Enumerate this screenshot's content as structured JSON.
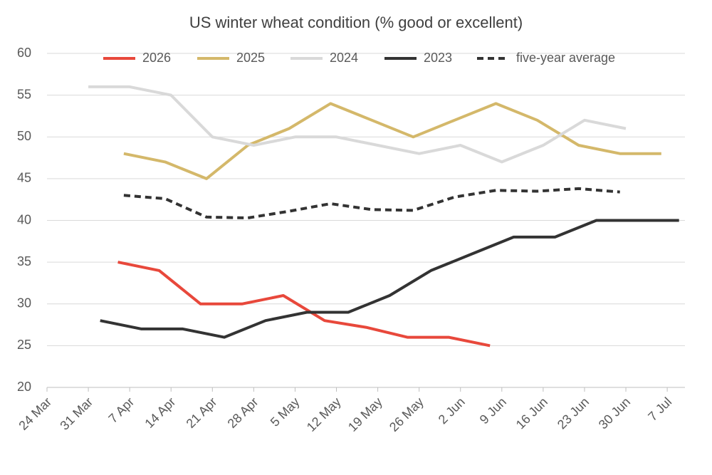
{
  "chart_data": {
    "type": "line",
    "title": "US winter wheat condition (% good or excellent)",
    "xlim": [
      "24 Mar",
      "10 Jul"
    ],
    "xticks": [
      "24 Mar",
      "31 Mar",
      "7 Apr",
      "14 Apr",
      "21 Apr",
      "28 Apr",
      "5 May",
      "12 May",
      "19 May",
      "26 May",
      "2 Jun",
      "9 Jun",
      "16 Jun",
      "23 Jun",
      "30 Jun",
      "7 Jul"
    ],
    "ylim": [
      20,
      60
    ],
    "yticks": [
      20,
      25,
      30,
      35,
      40,
      45,
      50,
      55,
      60
    ],
    "grid": true,
    "legend": "top",
    "series": [
      {
        "name": "2026",
        "color": "#e8483b",
        "line_style": "solid",
        "x": [
          "5 Apr",
          "12 Apr",
          "19 Apr",
          "26 Apr",
          "3 May",
          "10 May",
          "17 May",
          "24 May",
          "31 May",
          "7 Jun"
        ],
        "values": [
          35,
          34,
          30,
          30,
          31,
          28,
          27.2,
          26,
          26,
          25
        ]
      },
      {
        "name": "2025",
        "color": "#d4b86a",
        "line_style": "solid",
        "x": [
          "6 Apr",
          "13 Apr",
          "20 Apr",
          "27 Apr",
          "4 May",
          "11 May",
          "18 May",
          "25 May",
          "1 Jun",
          "8 Jun",
          "15 Jun",
          "22 Jun",
          "29 Jun",
          "6 Jul"
        ],
        "values": [
          48,
          47,
          45,
          49,
          51,
          54,
          52,
          50,
          52,
          54,
          52,
          49,
          48,
          48
        ]
      },
      {
        "name": "2024",
        "color": "#d9d9d9",
        "line_style": "solid",
        "x": [
          "31 Mar",
          "7 Apr",
          "14 Apr",
          "21 Apr",
          "28 Apr",
          "5 May",
          "12 May",
          "19 May",
          "26 May",
          "2 Jun",
          "9 Jun",
          "16 Jun",
          "23 Jun",
          "30 Jun"
        ],
        "values": [
          56,
          56,
          55,
          50,
          49,
          50,
          50,
          49,
          48,
          49,
          47,
          49,
          52,
          51
        ]
      },
      {
        "name": "2023",
        "color": "#333333",
        "line_style": "solid",
        "x": [
          "2 Apr",
          "9 Apr",
          "16 Apr",
          "23 Apr",
          "30 Apr",
          "7 May",
          "14 May",
          "21 May",
          "28 May",
          "4 Jun",
          "11 Jun",
          "18 Jun",
          "25 Jun",
          "2 Jul",
          "9 Jul"
        ],
        "values": [
          28,
          27,
          27,
          26,
          28,
          29,
          29,
          31,
          34,
          36,
          38,
          38,
          40,
          40,
          40
        ]
      },
      {
        "name": "five-year average",
        "color": "#333333",
        "line_style": "dashed",
        "x": [
          "6 Apr",
          "13 Apr",
          "20 Apr",
          "27 Apr",
          "4 May",
          "11 May",
          "18 May",
          "25 May",
          "1 Jun",
          "8 Jun",
          "15 Jun",
          "22 Jun",
          "29 Jun"
        ],
        "values": [
          43,
          42.6,
          40.4,
          40.3,
          41.1,
          42,
          41.3,
          41.2,
          42.8,
          43.6,
          43.5,
          43.8,
          43.4
        ]
      }
    ]
  }
}
